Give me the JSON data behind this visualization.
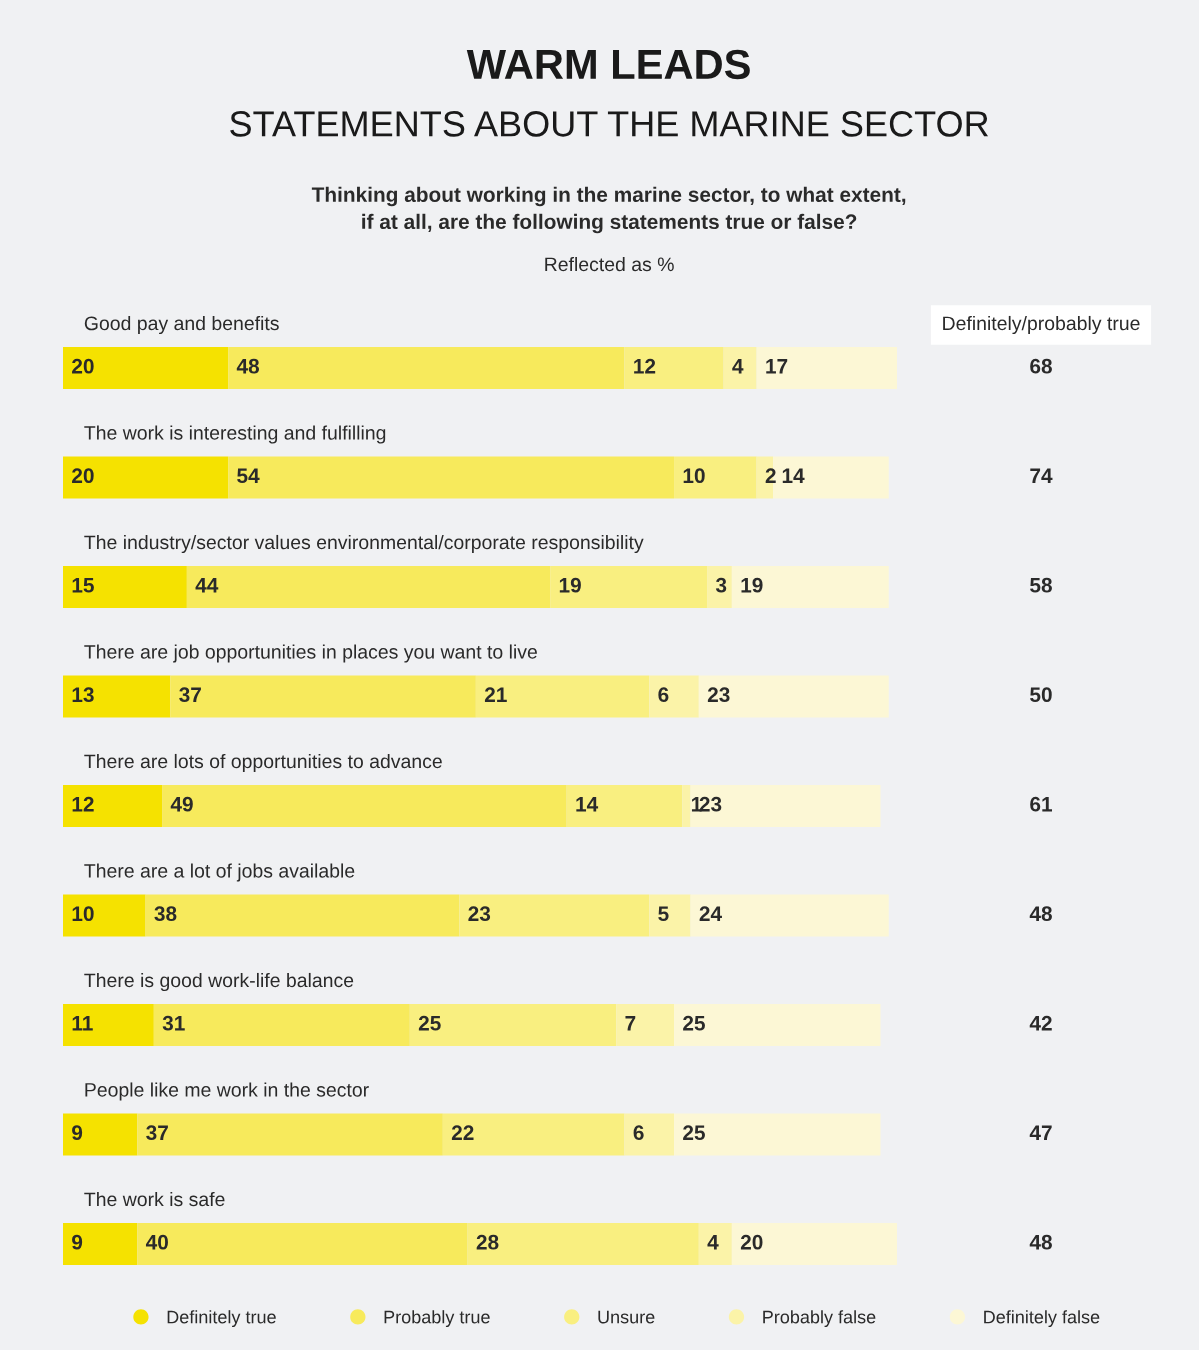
{
  "chart_data": [
    {
      "type": "bar",
      "orientation": "horizontal",
      "stacked": true,
      "data_labels": true,
      "legend": "bottom",
      "title": "WARM LEADS",
      "subtitle": "STATEMENTS ABOUT THE MARINE SECTOR",
      "annotations": [
        "Thinking about working in the marine sector, to what extent,\nif at all, are the following statements true or false?",
        "Reflected as %"
      ],
      "categories": [
        "Good pay and benefits",
        "The work is interesting and fulfilling",
        "The industry/sector values environmental/corporate responsibility",
        "There are job opportunities in places you want to live",
        "There are lots of opportunities to advance",
        "There are a lot of jobs available",
        "There is good work-life balance",
        "People like me work in the sector",
        "The work is safe"
      ],
      "series": [
        {
          "name": "Definitely true",
          "color": "#f5e200",
          "values": [
            20,
            20,
            15,
            13,
            12,
            10,
            11,
            9,
            9
          ]
        },
        {
          "name": "Probably true",
          "color": "#f7ea5c",
          "values": [
            48,
            54,
            44,
            37,
            49,
            38,
            31,
            37,
            40
          ]
        },
        {
          "name": "Unsure",
          "color": "#f9ef80",
          "values": [
            12,
            10,
            19,
            21,
            14,
            23,
            25,
            22,
            28
          ]
        },
        {
          "name": "Probably false",
          "color": "#fbf3a8",
          "values": [
            4,
            2,
            3,
            6,
            1,
            5,
            7,
            6,
            4
          ]
        },
        {
          "name": "Definitely false",
          "color": "#fcf7d5",
          "values": [
            17,
            14,
            19,
            23,
            23,
            24,
            25,
            25,
            20
          ]
        }
      ]
    },
    {
      "type": "other",
      "title": "Definitely/probably true",
      "data_labels": true,
      "values": [
        68,
        74,
        58,
        50,
        61,
        48,
        42,
        47,
        48
      ]
    }
  ]
}
